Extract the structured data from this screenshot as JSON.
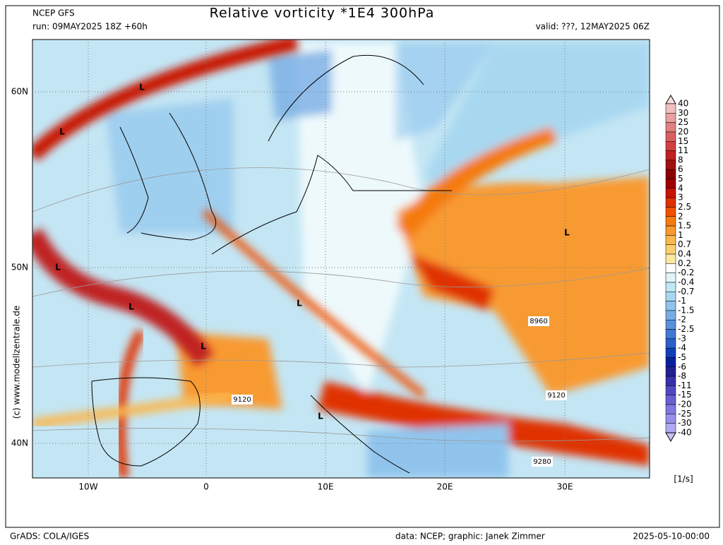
{
  "header": {
    "model": "NCEP GFS",
    "title": "Relative vorticity *1E4 300hPa",
    "run": "run: 09MAY2025 18Z +60h",
    "valid": "valid: ???, 12MAY2025 06Z"
  },
  "map": {
    "lat_labels": [
      "60N",
      "50N",
      "40N"
    ],
    "lon_labels": [
      "10W",
      "0",
      "10E",
      "20E",
      "30E"
    ],
    "lows": [
      "L",
      "L",
      "L",
      "L",
      "L",
      "L",
      "L",
      "L"
    ],
    "contour_labels": [
      "9120",
      "8960",
      "9120",
      "9280"
    ],
    "credit": "(c) www.modellzentrale.de"
  },
  "colorbar": {
    "levels": [
      40,
      30,
      25,
      20,
      15,
      11,
      8,
      6,
      5,
      4,
      3,
      2.5,
      2,
      1.5,
      1,
      0.7,
      0.4,
      0.2,
      -0.2,
      -0.4,
      -0.7,
      -1,
      -1.5,
      -2,
      -2.5,
      -3,
      -4,
      -5,
      -6,
      -8,
      -11,
      -15,
      -20,
      -25,
      -30,
      -40
    ],
    "colors": [
      "#f0c0c0",
      "#e8a0a0",
      "#e08080",
      "#d86060",
      "#d04040",
      "#c02020",
      "#a01010",
      "#8b0000",
      "#a00000",
      "#c81400",
      "#e03000",
      "#f05000",
      "#f57a10",
      "#f89a30",
      "#fab850",
      "#fcd070",
      "#fde8a0",
      "#ffffff",
      "#e0f4fa",
      "#c0e8f4",
      "#a8d8f0",
      "#90c4ec",
      "#78ace4",
      "#5890dc",
      "#4078d4",
      "#2860c8",
      "#1040b8",
      "#0820a0",
      "#202090",
      "#3830a8",
      "#5048c0",
      "#6860d0",
      "#8078e0",
      "#9890e8",
      "#b0a8f0"
    ],
    "unit": "[1/s]"
  },
  "footer": {
    "left": "GrADS: COLA/IGES",
    "center": "data: NCEP; graphic: Janek Zimmer",
    "right": "2025-05-10-00:00"
  }
}
